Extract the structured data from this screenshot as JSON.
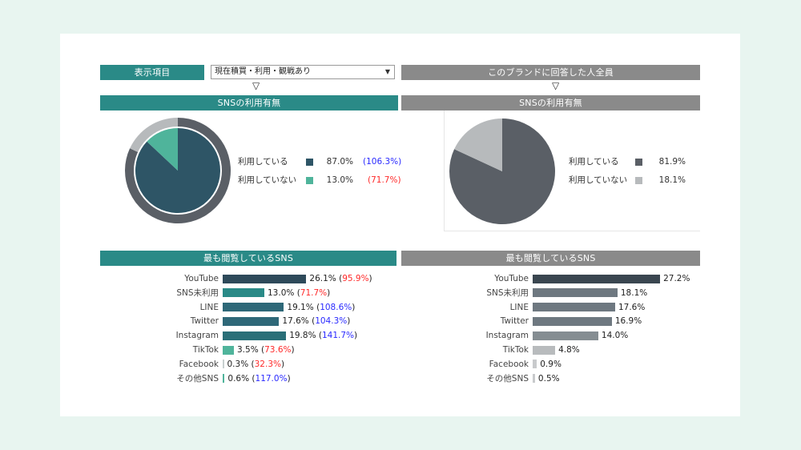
{
  "header": {
    "display_item_label": "表示項目",
    "select_value": "現在積買・利用・観戦あり",
    "right_title": "このブランドに回答した人全員"
  },
  "sections": {
    "left_pie_title": "SNSの利用有無",
    "right_pie_title": "SNSの利用有無",
    "left_bar_title": "最も閲覧しているSNS",
    "right_bar_title": "最も閲覧しているSNS"
  },
  "colors": {
    "teal_header": "#2a8a87",
    "gray_header": "#8a8a8a",
    "dark_slate": "#2e5566",
    "mint": "#4fb49b",
    "ring": "#5a5f66",
    "pie_dark": "#5a5f66",
    "pie_light": "#b7babc",
    "index_up": "#2a2aff",
    "index_down": "#ff2a2a"
  },
  "chart_data": [
    {
      "type": "pie",
      "title": "SNSの利用有無",
      "slices": [
        {
          "label": "利用している",
          "value": 87.0,
          "pct_text": "87.0%",
          "index_text": "(106.3%)",
          "index_dir": "up",
          "color": "#2e5566"
        },
        {
          "label": "利用していない",
          "value": 13.0,
          "pct_text": "13.0%",
          "index_text": "(71.7%)",
          "index_dir": "down",
          "color": "#4fb49b"
        }
      ],
      "outer_ring": {
        "value_used": 81.9,
        "color": "#5a5f66",
        "color_light": "#b7babc"
      }
    },
    {
      "type": "pie",
      "title": "SNSの利用有無",
      "slices": [
        {
          "label": "利用している",
          "value": 81.9,
          "pct_text": "81.9%",
          "color": "#5a5f66"
        },
        {
          "label": "利用していない",
          "value": 18.1,
          "pct_text": "18.1%",
          "color": "#b7babc"
        }
      ]
    },
    {
      "type": "bar",
      "title": "最も閲覧しているSNS",
      "categories": [
        "YouTube",
        "SNS未利用",
        "LINE",
        "Twitter",
        "Instagram",
        "TikTok",
        "Facebook",
        "その他SNS"
      ],
      "values": [
        26.1,
        13.0,
        19.1,
        17.6,
        19.8,
        3.5,
        0.3,
        0.6
      ],
      "value_texts": [
        "26.1%",
        "13.0%",
        "19.1%",
        "17.6%",
        "19.8%",
        "3.5%",
        "0.3%",
        "0.6%"
      ],
      "index_texts": [
        "95.9%",
        "71.7%",
        "108.6%",
        "104.3%",
        "141.7%",
        "73.6%",
        "32.3%",
        "117.0%"
      ],
      "index_dirs": [
        "down",
        "down",
        "up",
        "up",
        "up",
        "down",
        "down",
        "up"
      ],
      "bar_colors": [
        "#2e4a5a",
        "#2a8a87",
        "#2e6878",
        "#2e6878",
        "#2a6f78",
        "#4fb49b",
        "#c8d0d0",
        "#4fb49b"
      ]
    },
    {
      "type": "bar",
      "title": "最も閲覧しているSNS",
      "categories": [
        "YouTube",
        "SNS未利用",
        "LINE",
        "Twitter",
        "Instagram",
        "TikTok",
        "Facebook",
        "その他SNS"
      ],
      "values": [
        27.2,
        18.1,
        17.6,
        16.9,
        14.0,
        4.8,
        0.9,
        0.5
      ],
      "value_texts": [
        "27.2%",
        "18.1%",
        "17.6%",
        "16.9%",
        "14.0%",
        "4.8%",
        "0.9%",
        "0.5%"
      ],
      "bar_colors": [
        "#3a4650",
        "#6e7880",
        "#6e7880",
        "#6e7880",
        "#858d92",
        "#b8bbbd",
        "#c8cacc",
        "#c8cacc"
      ]
    }
  ]
}
